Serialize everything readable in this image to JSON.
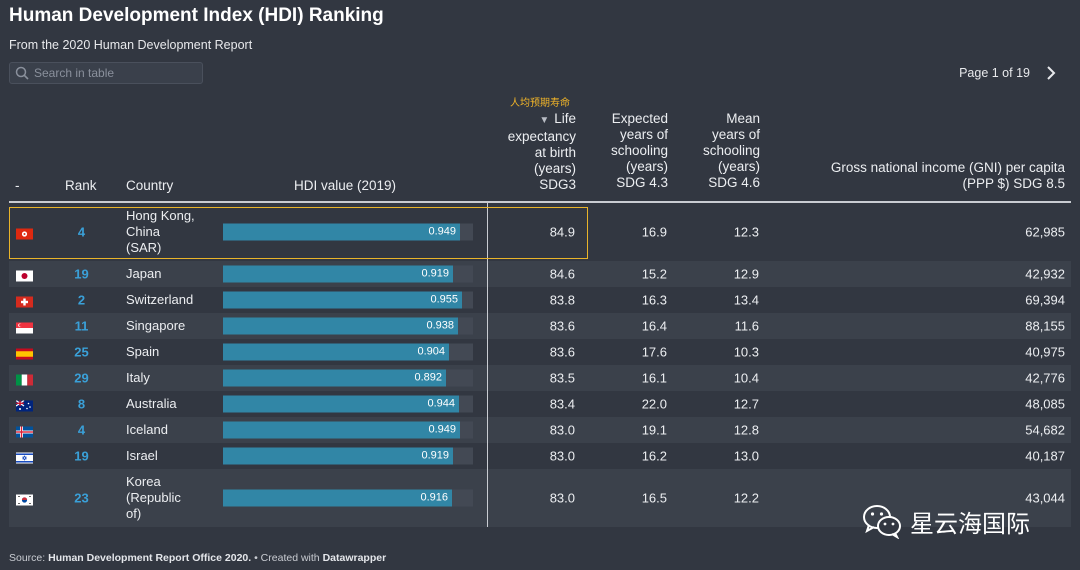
{
  "title": "Human Development Index (HDI) Ranking",
  "subtitle": "From the 2020 Human Development Report",
  "search": {
    "placeholder": "Search in table",
    "icon": "search-icon"
  },
  "pager": {
    "label": "Page 1 of 19",
    "next_icon": "chevron-right-icon"
  },
  "annotation": "人均预期寿命",
  "watermark": "星云海国际",
  "colors": {
    "background": "#323741",
    "bar": "#3186a6",
    "rank": "#3aa0d8",
    "highlight": "#e9b42a"
  },
  "footer": {
    "source_prefix": "Source:",
    "source": "Human Development Report Office 2020.",
    "created_prefix": "• Created with",
    "tool": "Datawrapper"
  },
  "columns": {
    "flag": "-",
    "rank": "Rank",
    "country": "Country",
    "hdi": "HDI value (2019)",
    "life": [
      "Life",
      "expectancy",
      "at birth",
      "(years)",
      "SDG3"
    ],
    "expected": [
      "Expected",
      "years of",
      "schooling",
      "(years)",
      "SDG 4.3"
    ],
    "mean": [
      "Mean",
      "years of",
      "schooling",
      "(years)",
      "SDG 4.6"
    ],
    "gni": [
      "Gross national income (GNI) per capita",
      "(PPP $) SDG 8.5"
    ]
  },
  "chart_data": {
    "type": "table",
    "title": "Human Development Index (HDI) Ranking",
    "bar_column": "HDI value (2019)",
    "bar_range": [
      0,
      1
    ],
    "rows": [
      {
        "flag": "hk",
        "rank": "4",
        "country": [
          "Hong Kong,",
          "China",
          "(SAR)"
        ],
        "hdi": 0.949,
        "hdi_label": "0.949",
        "life": "84.9",
        "expected": "16.9",
        "mean": "12.3",
        "gni": "62,985"
      },
      {
        "flag": "jp",
        "rank": "19",
        "country": [
          "Japan"
        ],
        "hdi": 0.919,
        "hdi_label": "0.919",
        "life": "84.6",
        "expected": "15.2",
        "mean": "12.9",
        "gni": "42,932"
      },
      {
        "flag": "ch",
        "rank": "2",
        "country": [
          "Switzerland"
        ],
        "hdi": 0.955,
        "hdi_label": "0.955",
        "life": "83.8",
        "expected": "16.3",
        "mean": "13.4",
        "gni": "69,394"
      },
      {
        "flag": "sg",
        "rank": "11",
        "country": [
          "Singapore"
        ],
        "hdi": 0.938,
        "hdi_label": "0.938",
        "life": "83.6",
        "expected": "16.4",
        "mean": "11.6",
        "gni": "88,155"
      },
      {
        "flag": "es",
        "rank": "25",
        "country": [
          "Spain"
        ],
        "hdi": 0.904,
        "hdi_label": "0.904",
        "life": "83.6",
        "expected": "17.6",
        "mean": "10.3",
        "gni": "40,975"
      },
      {
        "flag": "it",
        "rank": "29",
        "country": [
          "Italy"
        ],
        "hdi": 0.892,
        "hdi_label": "0.892",
        "life": "83.5",
        "expected": "16.1",
        "mean": "10.4",
        "gni": "42,776"
      },
      {
        "flag": "au",
        "rank": "8",
        "country": [
          "Australia"
        ],
        "hdi": 0.944,
        "hdi_label": "0.944",
        "life": "83.4",
        "expected": "22.0",
        "mean": "12.7",
        "gni": "48,085"
      },
      {
        "flag": "is",
        "rank": "4",
        "country": [
          "Iceland"
        ],
        "hdi": 0.949,
        "hdi_label": "0.949",
        "life": "83.0",
        "expected": "19.1",
        "mean": "12.8",
        "gni": "54,682"
      },
      {
        "flag": "il",
        "rank": "19",
        "country": [
          "Israel"
        ],
        "hdi": 0.919,
        "hdi_label": "0.919",
        "life": "83.0",
        "expected": "16.2",
        "mean": "13.0",
        "gni": "40,187"
      },
      {
        "flag": "kr",
        "rank": "23",
        "country": [
          "Korea",
          "(Republic",
          "of)"
        ],
        "hdi": 0.916,
        "hdi_label": "0.916",
        "life": "83.0",
        "expected": "16.5",
        "mean": "12.2",
        "gni": "43,044"
      }
    ]
  }
}
